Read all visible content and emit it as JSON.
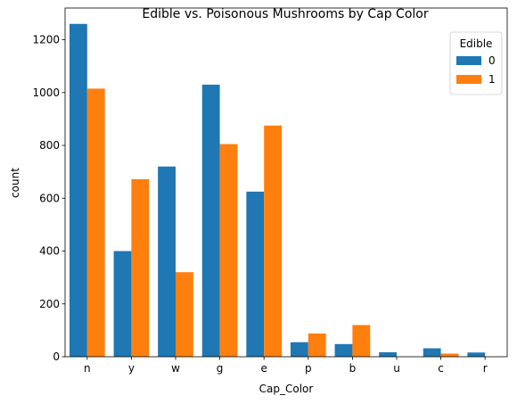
{
  "chart_data": {
    "type": "bar",
    "title": "Edible vs. Poisonous Mushrooms by Cap Color",
    "xlabel": "Cap_Color",
    "ylabel": "count",
    "categories": [
      "n",
      "y",
      "w",
      "g",
      "e",
      "p",
      "b",
      "u",
      "c",
      "r"
    ],
    "series": [
      {
        "name": "0",
        "color": "#1f77b4",
        "values": [
          1260,
          400,
          720,
          1030,
          625,
          55,
          48,
          17,
          32,
          16
        ]
      },
      {
        "name": "1",
        "color": "#ff7f0e",
        "values": [
          1015,
          672,
          320,
          805,
          875,
          88,
          120,
          0,
          12,
          0
        ]
      }
    ],
    "ylim": [
      0,
      1320
    ],
    "yticks": [
      0,
      200,
      400,
      600,
      800,
      1000,
      1200
    ],
    "legend": {
      "title": "Edible",
      "placement": "top-right"
    },
    "grid": false
  }
}
